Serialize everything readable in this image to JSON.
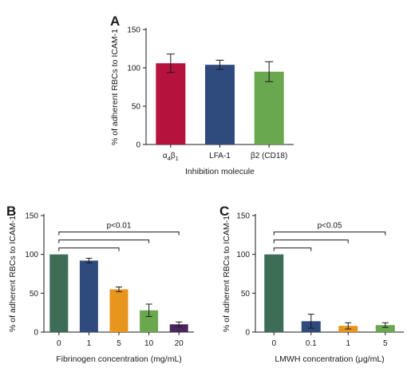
{
  "chart_data": [
    {
      "panel": "A",
      "type": "bar",
      "categories": [
        "α4β1",
        "LFA-1",
        "β2 (CD18)"
      ],
      "values": [
        106,
        104,
        95
      ],
      "errors": [
        12,
        6,
        13
      ],
      "colors": [
        "#b5123e",
        "#2f4a7c",
        "#6aa84f"
      ],
      "xlabel": "Inhibition molecule",
      "ylabel": "% of adherent RBCs to ICAM-1",
      "ylim": [
        0,
        150
      ],
      "yticks": [
        0,
        50,
        100,
        150
      ]
    },
    {
      "panel": "B",
      "type": "bar",
      "categories": [
        "0",
        "1",
        "5",
        "10",
        "20"
      ],
      "values": [
        100,
        92,
        55,
        28,
        10
      ],
      "errors": [
        0,
        3,
        3,
        8,
        3
      ],
      "colors": [
        "#3d6d56",
        "#2f4a7c",
        "#e8951e",
        "#6aa84f",
        "#4a2560"
      ],
      "xlabel": "Fibrinogen concentration (mg/mL)",
      "ylabel": "% of adherent RBCs to ICAM-1",
      "ylim": [
        0,
        150
      ],
      "yticks": [
        0,
        50,
        100,
        150
      ],
      "annotation": "p<0.01",
      "brackets": [
        [
          "0",
          "5"
        ],
        [
          "0",
          "10"
        ],
        [
          "0",
          "20"
        ]
      ]
    },
    {
      "panel": "C",
      "type": "bar",
      "categories": [
        "0",
        "0.1",
        "1",
        "5"
      ],
      "values": [
        100,
        14,
        8,
        9
      ],
      "errors": [
        0,
        9,
        4,
        3
      ],
      "colors": [
        "#3d6d56",
        "#2f4a7c",
        "#e8951e",
        "#6aa84f"
      ],
      "xlabel": "LMWH concentration (μg/mL)",
      "ylabel": "% of adherent RBCs to ICAM-1",
      "ylim": [
        0,
        150
      ],
      "yticks": [
        0,
        50,
        100,
        150
      ],
      "annotation": "p<0.05",
      "brackets": [
        [
          "0",
          "0.1"
        ],
        [
          "0",
          "1"
        ],
        [
          "0",
          "5"
        ]
      ]
    }
  ]
}
